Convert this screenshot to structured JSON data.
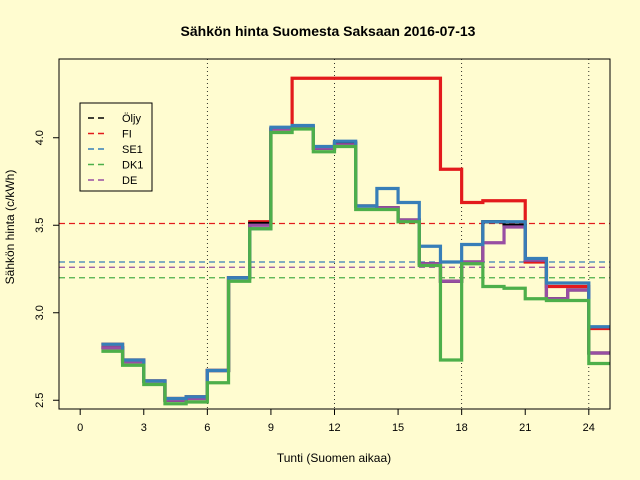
{
  "chart_data": {
    "type": "line",
    "title": "Sähkön hinta Suomesta Saksaan 2016-07-13",
    "xlabel": "Tunti (Suomen aikaa)",
    "ylabel": "Sähkön hinta (c/kWh)",
    "xlim": [
      -1,
      25
    ],
    "ylim": [
      2.45,
      4.45
    ],
    "x_ticks": [
      0,
      3,
      6,
      9,
      12,
      15,
      18,
      21,
      24
    ],
    "y_ticks": [
      2.5,
      3.0,
      3.5,
      4.0
    ],
    "y_tick_labels": [
      "2.5",
      "3.0",
      "3.5",
      "4.0"
    ],
    "vertical_gridlines": [
      6,
      12,
      18,
      24
    ],
    "legend_position": "top-left",
    "series": [
      {
        "name": "Öljy",
        "color": "#000000",
        "x": [
          1,
          2,
          3,
          4,
          5,
          6,
          7,
          8,
          9,
          10,
          11,
          12,
          13,
          14,
          15,
          16,
          17,
          18,
          19,
          20,
          21,
          22,
          23,
          24,
          25
        ],
        "values": [
          2.8,
          2.72,
          2.61,
          2.5,
          2.51,
          2.67,
          3.2,
          3.51,
          4.05,
          4.06,
          3.94,
          3.97,
          3.61,
          3.6,
          3.53,
          3.28,
          3.18,
          3.29,
          3.52,
          3.5,
          3.3,
          3.08,
          3.13,
          2.77,
          2.77
        ],
        "average": null
      },
      {
        "name": "FI",
        "color": "#e31a1c",
        "x": [
          1,
          2,
          3,
          4,
          5,
          6,
          7,
          8,
          9,
          10,
          11,
          12,
          13,
          14,
          15,
          16,
          17,
          18,
          19,
          20,
          21,
          22,
          23,
          24,
          25
        ],
        "values": [
          2.82,
          2.73,
          2.61,
          2.51,
          2.52,
          2.67,
          3.2,
          3.52,
          4.05,
          4.34,
          4.34,
          4.34,
          4.34,
          4.34,
          4.34,
          4.34,
          3.82,
          3.63,
          3.64,
          3.64,
          3.29,
          3.15,
          3.15,
          2.91,
          2.91
        ],
        "average": 3.51
      },
      {
        "name": "SE1",
        "color": "#377eb8",
        "x": [
          1,
          2,
          3,
          4,
          5,
          6,
          7,
          8,
          9,
          10,
          11,
          12,
          13,
          14,
          15,
          16,
          17,
          18,
          19,
          20,
          21,
          22,
          23,
          24,
          25
        ],
        "values": [
          2.82,
          2.73,
          2.61,
          2.51,
          2.52,
          2.67,
          3.2,
          3.48,
          4.06,
          4.07,
          3.95,
          3.98,
          3.61,
          3.71,
          3.63,
          3.38,
          3.29,
          3.39,
          3.52,
          3.52,
          3.31,
          3.17,
          3.17,
          2.92,
          2.92
        ],
        "average": 3.29
      },
      {
        "name": "DK1",
        "color": "#4daf4a",
        "x": [
          1,
          2,
          3,
          4,
          5,
          6,
          7,
          8,
          9,
          10,
          11,
          12,
          13,
          14,
          15,
          16,
          17,
          18,
          19,
          20,
          21,
          22,
          23,
          24,
          25
        ],
        "values": [
          2.78,
          2.7,
          2.59,
          2.48,
          2.49,
          2.6,
          3.18,
          3.48,
          4.03,
          4.05,
          3.92,
          3.95,
          3.59,
          3.59,
          3.52,
          3.27,
          2.73,
          3.28,
          3.15,
          3.14,
          3.08,
          3.07,
          3.07,
          2.71,
          2.71
        ],
        "average": 3.2
      },
      {
        "name": "DE",
        "color": "#984ea3",
        "x": [
          1,
          2,
          3,
          4,
          5,
          6,
          7,
          8,
          9,
          10,
          11,
          12,
          13,
          14,
          15,
          16,
          17,
          18,
          19,
          20,
          21,
          22,
          23,
          24,
          25
        ],
        "values": [
          2.8,
          2.72,
          2.61,
          2.5,
          2.51,
          2.67,
          3.2,
          3.5,
          4.05,
          4.06,
          3.94,
          3.96,
          3.61,
          3.6,
          3.53,
          3.28,
          3.18,
          3.29,
          3.4,
          3.49,
          3.3,
          3.08,
          3.13,
          2.77,
          2.77
        ],
        "average": 3.26
      }
    ]
  }
}
